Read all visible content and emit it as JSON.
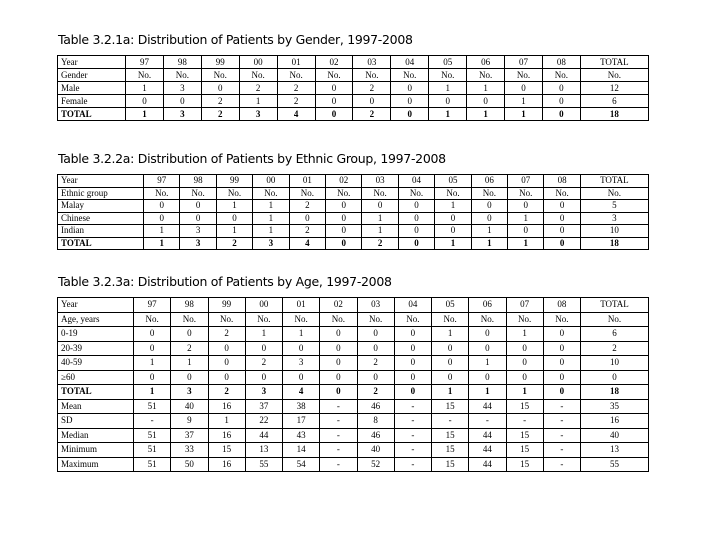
{
  "tables": [
    {
      "title": "Table 3.2.1a: Distribution of Patients by Gender, 1997-2008",
      "header": [
        "Year",
        "97",
        "98",
        "99",
        "00",
        "01",
        "02",
        "03",
        "04",
        "05",
        "06",
        "07",
        "08",
        "TOTAL"
      ],
      "subheader": [
        "Gender",
        "No.",
        "No.",
        "No.",
        "No.",
        "No.",
        "No.",
        "No.",
        "No.",
        "No.",
        "No.",
        "No.",
        "No.",
        "No."
      ],
      "rows": [
        [
          "Male",
          "1",
          "3",
          "0",
          "2",
          "2",
          "0",
          "2",
          "0",
          "1",
          "1",
          "0",
          "0",
          "12"
        ],
        [
          "Female",
          "0",
          "0",
          "2",
          "1",
          "2",
          "0",
          "0",
          "0",
          "0",
          "0",
          "1",
          "0",
          "6"
        ],
        [
          "TOTAL",
          "1",
          "3",
          "2",
          "3",
          "4",
          "0",
          "2",
          "0",
          "1",
          "1",
          "1",
          "0",
          "18"
        ]
      ],
      "bold_rows": [
        "TOTAL"
      ]
    },
    {
      "title": "Table 3.2.2a: Distribution of Patients by Ethnic Group, 1997-2008",
      "header": [
        "Year",
        "97",
        "98",
        "99",
        "00",
        "01",
        "02",
        "03",
        "04",
        "05",
        "06",
        "07",
        "08",
        "TOTAL"
      ],
      "subheader": [
        "Ethnic group",
        "No.",
        "No.",
        "No.",
        "No.",
        "No.",
        "No.",
        "No.",
        "No.",
        "No.",
        "No.",
        "No.",
        "No.",
        "No."
      ],
      "rows": [
        [
          "Malay",
          "0",
          "0",
          "1",
          "1",
          "2",
          "0",
          "0",
          "0",
          "1",
          "0",
          "0",
          "0",
          "5"
        ],
        [
          "Chinese",
          "0",
          "0",
          "0",
          "1",
          "0",
          "0",
          "1",
          "0",
          "0",
          "0",
          "1",
          "0",
          "3"
        ],
        [
          "Indian",
          "1",
          "3",
          "1",
          "1",
          "2",
          "0",
          "1",
          "0",
          "0",
          "1",
          "0",
          "0",
          "10"
        ],
        [
          "TOTAL",
          "1",
          "3",
          "2",
          "3",
          "4",
          "0",
          "2",
          "0",
          "1",
          "1",
          "1",
          "0",
          "18"
        ]
      ],
      "bold_rows": [
        "TOTAL"
      ]
    },
    {
      "title": "Table 3.2.3a: Distribution of Patients by Age, 1997-2008",
      "header": [
        "Year",
        "97",
        "98",
        "99",
        "00",
        "01",
        "02",
        "03",
        "04",
        "05",
        "06",
        "07",
        "08",
        "TOTAL"
      ],
      "subheader": [
        "Age, years",
        "No.",
        "No.",
        "No.",
        "No.",
        "No.",
        "No.",
        "No.",
        "No.",
        "No.",
        "No.",
        "No.",
        "No.",
        "No."
      ],
      "rows": [
        [
          "0-19",
          "0",
          "0",
          "2",
          "1",
          "1",
          "0",
          "0",
          "0",
          "1",
          "0",
          "1",
          "0",
          "6"
        ],
        [
          "20-39",
          "0",
          "2",
          "0",
          "0",
          "0",
          "0",
          "0",
          "0",
          "0",
          "0",
          "0",
          "0",
          "2"
        ],
        [
          "40-59",
          "1",
          "1",
          "0",
          "2",
          "3",
          "0",
          "2",
          "0",
          "0",
          "1",
          "0",
          "0",
          "10"
        ],
        [
          "≥60",
          "0",
          "0",
          "0",
          "0",
          "0",
          "0",
          "0",
          "0",
          "0",
          "0",
          "0",
          "0",
          "0"
        ],
        [
          "TOTAL",
          "1",
          "3",
          "2",
          "3",
          "4",
          "0",
          "2",
          "0",
          "1",
          "1",
          "1",
          "0",
          "18"
        ],
        [
          "Mean",
          "51",
          "40",
          "16",
          "37",
          "38",
          "-",
          "46",
          "-",
          "15",
          "44",
          "15",
          "-",
          "35"
        ],
        [
          "SD",
          "-",
          "9",
          "1",
          "22",
          "17",
          "-",
          "8",
          "-",
          "-",
          "-",
          "-",
          "-",
          "16"
        ],
        [
          "Median",
          "51",
          "37",
          "16",
          "44",
          "43",
          "-",
          "46",
          "-",
          "15",
          "44",
          "15",
          "-",
          "40"
        ],
        [
          "Minimum",
          "51",
          "33",
          "15",
          "13",
          "14",
          "-",
          "40",
          "-",
          "15",
          "44",
          "15",
          "-",
          "13"
        ],
        [
          "Maximum",
          "51",
          "50",
          "16",
          "55",
          "54",
          "-",
          "52",
          "-",
          "15",
          "44",
          "15",
          "-",
          "55"
        ]
      ],
      "bold_rows": [
        "TOTAL"
      ]
    }
  ]
}
